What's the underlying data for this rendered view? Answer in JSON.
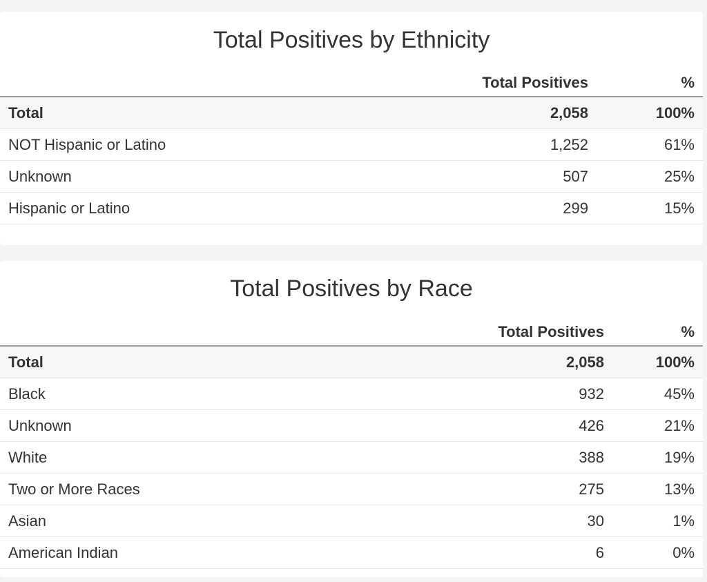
{
  "ethnicity": {
    "title": "Total Positives by Ethnicity",
    "columns": [
      "",
      "Total Positives",
      "%"
    ],
    "rows": [
      {
        "label": "Total",
        "value": "2,058",
        "pct": "100%"
      },
      {
        "label": "NOT Hispanic or Latino",
        "value": "1,252",
        "pct": "61%"
      },
      {
        "label": "Unknown",
        "value": "507",
        "pct": "25%"
      },
      {
        "label": "Hispanic or Latino",
        "value": "299",
        "pct": "15%"
      }
    ]
  },
  "race": {
    "title": "Total Positives by Race",
    "columns": [
      "",
      "Total Positives",
      "%"
    ],
    "rows": [
      {
        "label": "Total",
        "value": "2,058",
        "pct": "100%"
      },
      {
        "label": "Black",
        "value": "932",
        "pct": "45%"
      },
      {
        "label": "Unknown",
        "value": "426",
        "pct": "21%"
      },
      {
        "label": "White",
        "value": "388",
        "pct": "19%"
      },
      {
        "label": "Two or More Races",
        "value": "275",
        "pct": "13%"
      },
      {
        "label": "Asian",
        "value": "30",
        "pct": "1%"
      },
      {
        "label": "American Indian",
        "value": "6",
        "pct": "0%"
      }
    ]
  }
}
